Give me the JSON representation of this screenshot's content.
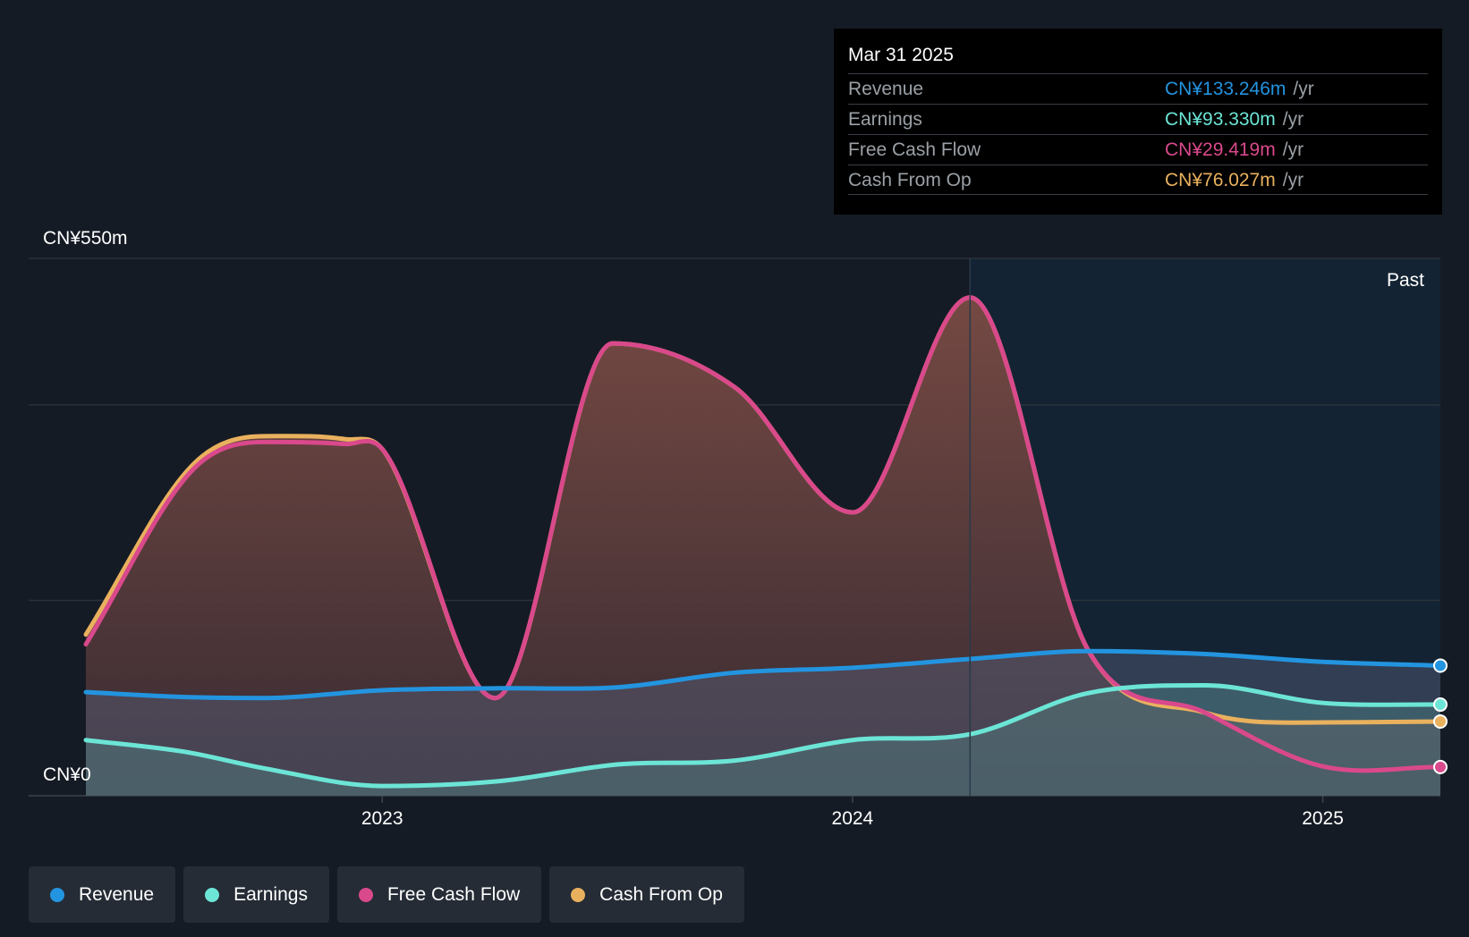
{
  "tooltip": {
    "date": "Mar 31 2025",
    "rows": [
      {
        "label": "Revenue",
        "value": "CN¥133.246m",
        "unit": "/yr",
        "color": "#2394df"
      },
      {
        "label": "Earnings",
        "value": "CN¥93.330m",
        "unit": "/yr",
        "color": "#6ce5d6"
      },
      {
        "label": "Free Cash Flow",
        "value": "CN¥29.419m",
        "unit": "/yr",
        "color": "#d9498b"
      },
      {
        "label": "Cash From Op",
        "value": "CN¥76.027m",
        "unit": "/yr",
        "color": "#e9b15e"
      }
    ]
  },
  "legend": [
    {
      "label": "Revenue",
      "color": "#2394df"
    },
    {
      "label": "Earnings",
      "color": "#6ce5d6"
    },
    {
      "label": "Free Cash Flow",
      "color": "#d9498b"
    },
    {
      "label": "Cash From Op",
      "color": "#e9b15e"
    }
  ],
  "chart_data": {
    "type": "area",
    "y_top_label": "CN¥550m",
    "y_bottom_label": "CN¥0",
    "ylim": [
      0,
      550
    ],
    "xlim": [
      2022.37,
      2025.25
    ],
    "past_label": "Past",
    "past_start": 2024.25,
    "x_ticks": [
      {
        "value": 2023.0,
        "label": "2023"
      },
      {
        "value": 2024.0,
        "label": "2024"
      },
      {
        "value": 2025.0,
        "label": "2025"
      }
    ],
    "grid_lines": [
      0,
      200,
      400,
      550
    ],
    "series": [
      {
        "name": "Cash From Op",
        "color": "#e9b15e",
        "fill": true,
        "x": [
          2022.37,
          2022.6,
          2022.75,
          2022.92,
          2023.0,
          2023.24,
          2023.49,
          2023.75,
          2024.0,
          2024.25,
          2024.5,
          2024.75,
          2025.0,
          2025.25
        ],
        "y": [
          165,
          340,
          368,
          365,
          355,
          100,
          463,
          418,
          290,
          510,
          150,
          85,
          75,
          76
        ]
      },
      {
        "name": "Free Cash Flow",
        "color": "#d9498b",
        "fill": false,
        "x": [
          2022.37,
          2022.6,
          2022.75,
          2022.92,
          2023.0,
          2023.24,
          2023.49,
          2023.75,
          2024.0,
          2024.25,
          2024.5,
          2024.75,
          2025.0,
          2025.25
        ],
        "y": [
          155,
          335,
          362,
          360,
          355,
          100,
          463,
          418,
          290,
          510,
          150,
          85,
          30,
          29.4
        ]
      },
      {
        "name": "Revenue",
        "color": "#2394df",
        "fill": true,
        "x": [
          2022.37,
          2022.58,
          2022.75,
          2023.0,
          2023.25,
          2023.5,
          2023.75,
          2024.0,
          2024.25,
          2024.5,
          2024.75,
          2025.0,
          2025.25
        ],
        "y": [
          106,
          101,
          100,
          108,
          110,
          111,
          126,
          131,
          140,
          148,
          145,
          137,
          133.2
        ]
      },
      {
        "name": "Earnings",
        "color": "#6ce5d6",
        "fill": true,
        "x": [
          2022.37,
          2022.58,
          2022.75,
          2023.0,
          2023.25,
          2023.5,
          2023.75,
          2024.0,
          2024.25,
          2024.5,
          2024.75,
          2025.0,
          2025.25
        ],
        "y": [
          57,
          45,
          28,
          10,
          15,
          32,
          36,
          57,
          63,
          105,
          113,
          95,
          93.3
        ]
      }
    ]
  }
}
